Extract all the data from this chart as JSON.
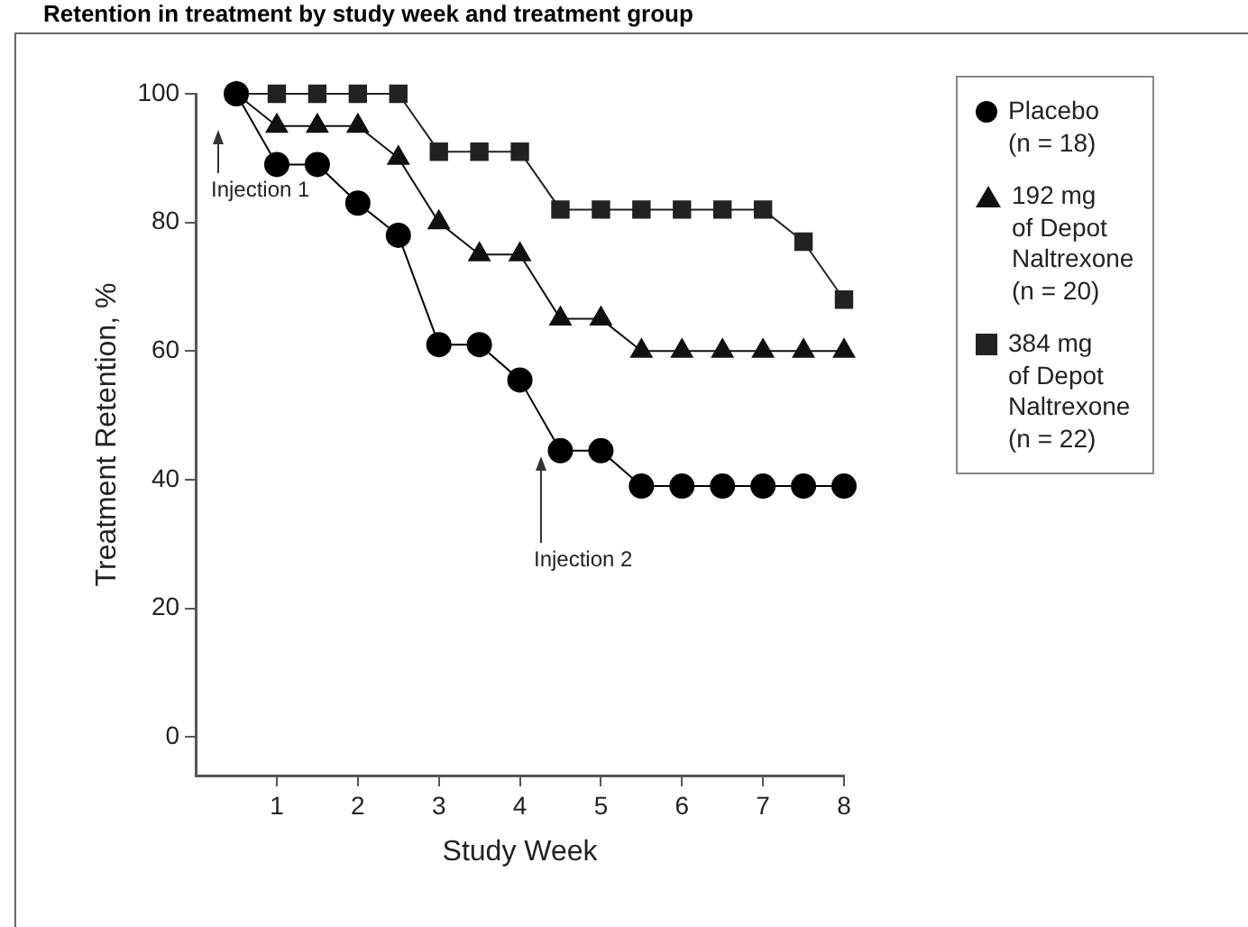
{
  "chart_data": {
    "type": "line",
    "title": "Retention in treatment by study week and treatment group",
    "xlabel": "Study Week",
    "ylabel": "Treatment Retention, %",
    "x": [
      0.5,
      1,
      1.5,
      2,
      2.5,
      3,
      3.5,
      4,
      4.5,
      5,
      5.5,
      6,
      6.5,
      7,
      7.5,
      8
    ],
    "series": [
      {
        "name": "Placebo\n(n = 18)",
        "color": "#000000",
        "marker": "circle",
        "values": [
          100,
          89,
          89,
          83,
          78,
          61,
          61,
          55.5,
          44.5,
          44.5,
          39,
          39,
          39,
          39,
          39,
          39
        ]
      },
      {
        "name": "192 mg\nof Depot\nNaltrexone\n(n = 20)",
        "color": "#111111",
        "marker": "triangle",
        "values": [
          100,
          95,
          95,
          95,
          90,
          80,
          75,
          75,
          65,
          65,
          60,
          60,
          60,
          60,
          60,
          60
        ]
      },
      {
        "name": "384 mg\nof Depot\nNaltrexone\n(n = 22)",
        "color": "#222222",
        "marker": "square",
        "values": [
          100,
          100,
          100,
          100,
          100,
          91,
          91,
          91,
          82,
          82,
          82,
          82,
          82,
          82,
          77,
          68
        ]
      }
    ],
    "xlim": [
      0,
      8
    ],
    "xticks": [
      1,
      2,
      3,
      4,
      5,
      6,
      7,
      8
    ],
    "ylim": [
      -6,
      100
    ],
    "yticks": [
      0,
      20,
      40,
      60,
      80,
      100
    ],
    "annotations": [
      "Injection 1",
      "Injection 2"
    ],
    "grid": false,
    "legend": "right"
  }
}
